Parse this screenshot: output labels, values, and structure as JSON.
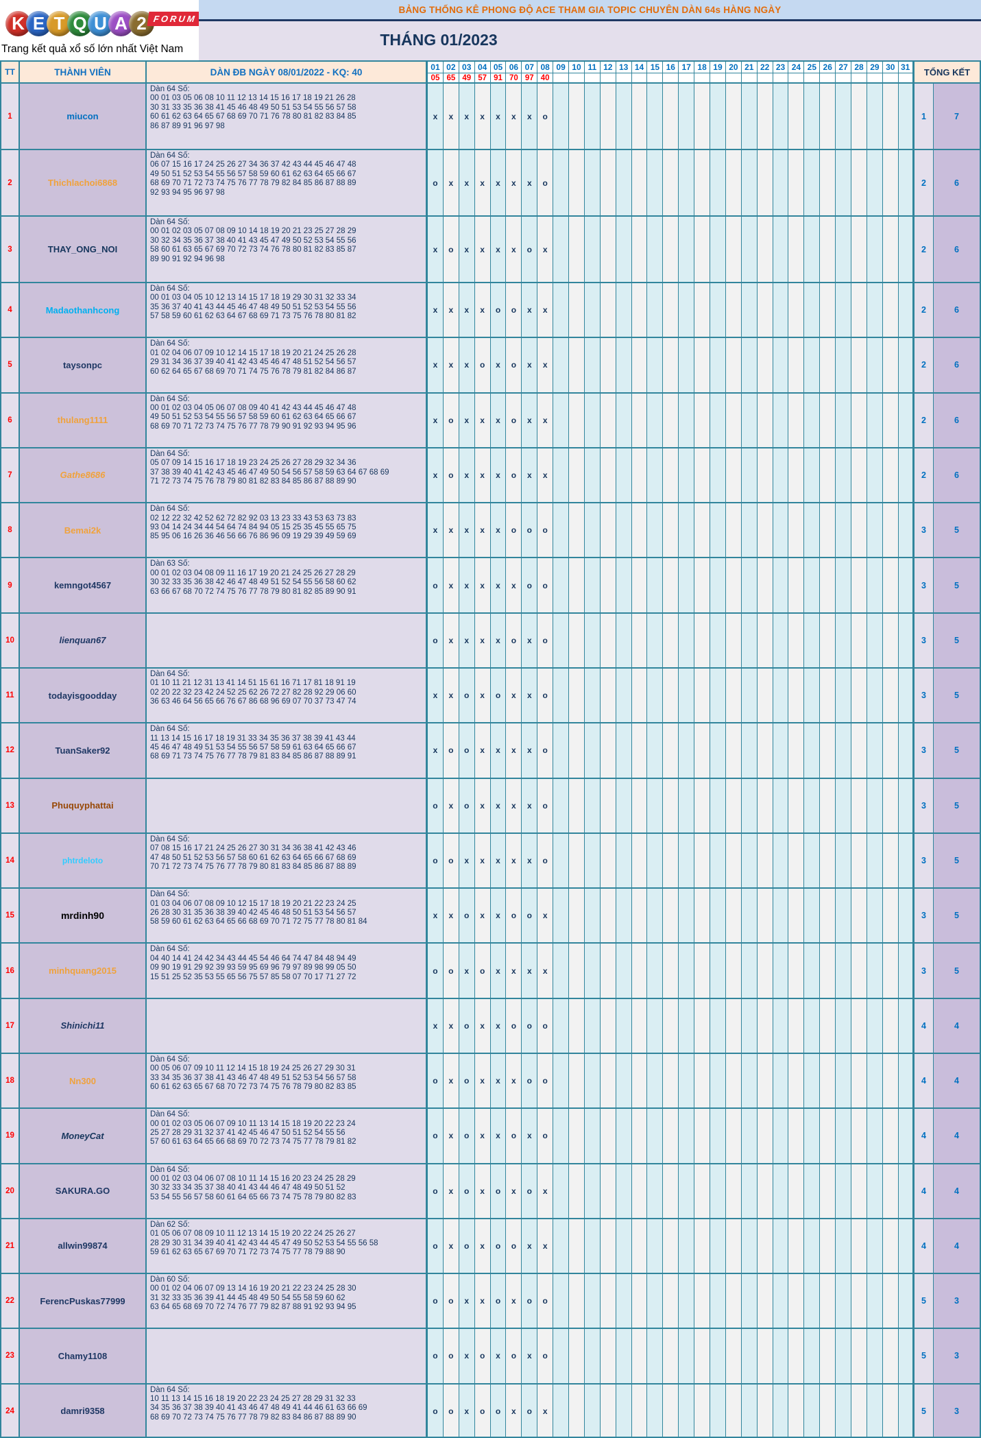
{
  "logo": {
    "letters": [
      {
        "ch": "K",
        "bg": "#D03028"
      },
      {
        "ch": "E",
        "bg": "#2B66C4"
      },
      {
        "ch": "T",
        "bg": "#D89A28"
      },
      {
        "ch": "Q",
        "bg": "#2E8B3C"
      },
      {
        "ch": "U",
        "bg": "#3D8FD6"
      },
      {
        "ch": "A",
        "bg": "#9C4FC4"
      },
      {
        "ch": "2",
        "bg": "#8A6D2F"
      }
    ],
    "forum": "FORUM",
    "tagline": "Trang kết quả xổ số lớn nhất Việt Nam"
  },
  "banner": {
    "title": "BẢNG THỐNG KÊ PHONG ĐỘ ACE THAM GIA TOPIC CHUYÊN DÀN 64s HÀNG NGÀY",
    "month": "THÁNG 01/2023"
  },
  "table": {
    "headers": {
      "tt": "TT",
      "member": "THÀNH VIÊN",
      "dan": "DÀN ĐB NGÀY 08/01/2022 - KQ: 40",
      "total": "TỔNG KẾT"
    },
    "days": [
      "01",
      "02",
      "03",
      "04",
      "05",
      "06",
      "07",
      "08",
      "09",
      "10",
      "11",
      "12",
      "13",
      "14",
      "15",
      "16",
      "17",
      "18",
      "19",
      "20",
      "21",
      "22",
      "23",
      "24",
      "25",
      "26",
      "27",
      "28",
      "29",
      "30",
      "31"
    ],
    "kq": [
      "05",
      "65",
      "49",
      "57",
      "91",
      "70",
      "97",
      "40"
    ],
    "rows": [
      {
        "tt": "1",
        "name": "miucon",
        "color": "#0070C0",
        "italic": false,
        "size": 13,
        "dan_label": "Dàn 64 Số:",
        "dan_lines": [
          "00 01 03 05 06 08 10 11 12 13 14 15 16 17 18 19 21 26 28",
          "30 31 33 35 36 38 41 45 46 48 49 50 51 53 54 55 56 57 58",
          "60 61 62 63 64 65 67 68 69 70 71 76 78 80 81 82 83 84 85",
          "86 87 89 91 96 97 98"
        ],
        "marks": "xxxxxxxo",
        "miss": "1",
        "hit": "7"
      },
      {
        "tt": "2",
        "name": "Thichlachoi6868",
        "color": "#F0A23C",
        "italic": false,
        "size": 13,
        "dan_label": "Dàn 64 Số:",
        "dan_lines": [
          "06 07 15 16 17 24 25 26 27 34 36 37 42 43 44 45 46 47 48",
          "49 50 51 52 53 54 55 56 57 58 59 60 61 62 63 64 65 66 67",
          "68 69 70 71 72 73 74 75 76 77 78 79 82 84 85 86 87 88 89",
          "92 93 94 95 96 97 98"
        ],
        "marks": "oxxxxxxo",
        "miss": "2",
        "hit": "6"
      },
      {
        "tt": "3",
        "name": "THAY_ONG_NOI",
        "color": "#17365D",
        "italic": false,
        "size": 13,
        "dan_label": "Dàn 64 Số:",
        "dan_lines": [
          "00 01 02 03 05 07 08 09 10 14 18 19 20 21 23 25 27 28 29",
          "30 32 34 35 36 37 38 40 41 43 45 47 49 50 52 53 54 55 56",
          "58 60 61 63 65 67 69 70 72 73 74 76 78 80 81 82 83 85 87",
          "89 90 91 92 94 96 98"
        ],
        "marks": "xoxxxxox",
        "miss": "2",
        "hit": "6"
      },
      {
        "tt": "4",
        "name": "Madaothanhcong",
        "color": "#00B0F0",
        "italic": false,
        "size": 13,
        "dan_label": "Dàn 64 Số:",
        "dan_lines": [
          "00 01 03 04 05 10 12 13 14 15 17 18 19 29 30 31 32 33 34",
          "35 36 37 40 41 43 44 45 46 47 48 49 50 51 52 53 54 55 56",
          "57 58 59 60 61 62 63 64 67 68 69 71 73 75 76 78 80 81 82"
        ],
        "marks": "xxxxooxx",
        "miss": "2",
        "hit": "6"
      },
      {
        "tt": "5",
        "name": "taysonpc",
        "color": "#1F3864",
        "italic": false,
        "size": 13,
        "dan_label": "Dàn 64 Số:",
        "dan_lines": [
          "01 02 04 06 07 09 10 12 14 15 17 18 19 20 21 24 25 26 28",
          "29 31 34 36 37 39 40 41 42 43 45 46 47 48 51 52 54 56 57",
          "60 62 64 65 67 68 69 70 71 74 75 76 78 79 81 82 84 86 87"
        ],
        "marks": "xxxoxoxx",
        "miss": "2",
        "hit": "6"
      },
      {
        "tt": "6",
        "name": "thulang1111",
        "color": "#F0A23C",
        "italic": false,
        "size": 13,
        "dan_label": "Dàn 64 Số:",
        "dan_lines": [
          "00 01 02 03 04 05 06 07 08 09 40 41 42 43 44 45 46 47 48",
          "49 50 51 52 53 54 55 56 57 58 59 60 61 62 63 64 65 66 67",
          "68 69 70 71 72 73 74 75 76 77 78 79 90 91 92 93 94 95 96"
        ],
        "marks": "xoxxxoxx",
        "miss": "2",
        "hit": "6"
      },
      {
        "tt": "7",
        "name": "Gathe8686",
        "color": "#F0A23C",
        "italic": true,
        "size": 13,
        "dan_label": "Dàn 64 Số:",
        "dan_lines": [
          "05 07 09 14 15 16 17 18 19 23 24 25 26 27 28 29 32 34 36",
          "37 38 39 40 41 42 43 45 46 47 49 50 54 56 57 58 59 63 64 67 68 69",
          "71 72 73 74 75 76 78 79 80 81 82 83 84 85 86 87 88 89 90"
        ],
        "marks": "xoxxxoxx",
        "miss": "2",
        "hit": "6"
      },
      {
        "tt": "8",
        "name": "Bemai2k",
        "color": "#F0A23C",
        "italic": false,
        "size": 13,
        "dan_label": "Dàn 64 Số:",
        "dan_lines": [
          "02 12 22 32 42 52 62 72 82 92 03 13 23 33 43 53 63 73 83",
          "93 04 14 24 34 44 54 64 74 84 94 05 15 25 35 45 55 65 75",
          "85 95 06 16 26 36 46 56 66 76 86 96 09 19 29 39 49 59 69"
        ],
        "marks": "xxxxxooo",
        "miss": "3",
        "hit": "5"
      },
      {
        "tt": "9",
        "name": "kemngot4567",
        "color": "#1F3864",
        "italic": false,
        "size": 13,
        "dan_label": "Dàn 63 Số:",
        "dan_lines": [
          "00 01 02 03 04 08 09 11 16 17 19 20 21 24 25 26 27 28 29",
          "30 32 33 35 36 38 42 46 47 48 49 51 52 54 55 56 58 60 62",
          "63 66 67 68 70 72 74 75 76 77 78 79 80 81 82 85 89 90 91"
        ],
        "marks": "oxxxxxoo",
        "miss": "3",
        "hit": "5"
      },
      {
        "tt": "10",
        "name": "lienquan67",
        "color": "#1F3864",
        "italic": true,
        "size": 13,
        "dan_label": "",
        "dan_lines": [],
        "marks": "oxxxxoxo",
        "miss": "3",
        "hit": "5"
      },
      {
        "tt": "11",
        "name": "todayisgoodday",
        "color": "#1F3864",
        "italic": false,
        "size": 13,
        "dan_label": "Dàn 64 Số:",
        "dan_lines": [
          "01 10 11 21 12 31 13 41 14 51 15 61 16 71 17 81 18 91 19",
          "02 20 22 32 23 42 24 52 25 62 26 72 27 82 28 92 29 06 60",
          "36 63 46 64 56 65 66 76 67 86 68 96 69 07 70 37 73 47 74"
        ],
        "marks": "xxoxoxxo",
        "miss": "3",
        "hit": "5"
      },
      {
        "tt": "12",
        "name": "TuanSaker92",
        "color": "#1F3864",
        "italic": false,
        "size": 13,
        "dan_label": "Dàn 64 Số:",
        "dan_lines": [
          "11 13 14 15 16 17 18 19 31 33 34 35 36 37 38 39 41 43 44",
          "45 46 47 48 49 51 53 54 55 56 57 58 59 61 63 64 65 66 67",
          "68 69 71 73 74 75 76 77 78 79 81 83 84 85 86 87 88 89 91"
        ],
        "marks": "xooxxxxo",
        "miss": "3",
        "hit": "5"
      },
      {
        "tt": "13",
        "name": "Phuquyphattai",
        "color": "#974806",
        "italic": false,
        "size": 13,
        "dan_label": "",
        "dan_lines": [],
        "marks": "oxoxxxxo",
        "miss": "3",
        "hit": "5"
      },
      {
        "tt": "14",
        "name": "phtrdeloto",
        "color": "#33CCFF",
        "italic": false,
        "size": 12,
        "dan_label": "Dàn 64 Số:",
        "dan_lines": [
          "07 08 15 16 17 21 24 25 26 27 30 31 34 36 38 41 42 43 46",
          "47 48 50 51 52 53 56 57 58 60 61 62 63 64 65 66 67 68 69",
          "70 71 72 73 74 75 76 77 78 79 80 81 83 84 85 86 87 88 89"
        ],
        "marks": "ooxxxxxo",
        "miss": "3",
        "hit": "5"
      },
      {
        "tt": "15",
        "name": "mrdinh90",
        "color": "#000000",
        "italic": false,
        "size": 14,
        "dan_label": "Dàn 64 Số:",
        "dan_lines": [
          "01 03 04 06 07 08 09 10 12 15 17 18 19 20 21 22 23 24 25",
          "26 28 30 31 35 36 38 39 40 42 45 46 48 50 51 53 54 56 57",
          "58 59 60 61 62 63 64 65 66 68 69 70 71 72 75 77 78 80 81 84"
        ],
        "marks": "xxoxxoox",
        "miss": "3",
        "hit": "5"
      },
      {
        "tt": "16",
        "name": "minhquang2015",
        "color": "#F0A23C",
        "italic": false,
        "size": 13,
        "dan_label": "Dàn 64 Số:",
        "dan_lines": [
          "04 40 14 41 24 42 34 43 44 45 54 46 64 74 47 84 48 94 49",
          "09 90 19 91 29 92 39 93 59 95 69 96 79 97 89 98 99 05 50",
          "15 51 25 52 35 53 55 65 56 75 57 85 58 07 70 17 71 27 72"
        ],
        "marks": "ooxoxxxx",
        "miss": "3",
        "hit": "5"
      },
      {
        "tt": "17",
        "name": "Shinichi11",
        "color": "#1F3864",
        "italic": true,
        "size": 13,
        "dan_label": "",
        "dan_lines": [],
        "marks": "xxoxxooo",
        "miss": "4",
        "hit": "4"
      },
      {
        "tt": "18",
        "name": "Nn300",
        "color": "#F0A23C",
        "italic": false,
        "size": 13,
        "dan_label": "Dàn 64 Số:",
        "dan_lines": [
          "00 05 06 07 09 10 11 12 14 15 18 19 24 25 26 27 29 30 31",
          "33 34 35 36 37 38 41 43 46 47 48 49 51 52 53 54 56 57 58",
          "60 61 62 63 65 67 68 70 72 73 74 75 76 78 79 80 82 83 85"
        ],
        "marks": "oxoxxxoo",
        "miss": "4",
        "hit": "4"
      },
      {
        "tt": "19",
        "name": "MoneyCat",
        "color": "#17365D",
        "italic": true,
        "size": 13,
        "dan_label": "Dàn 64 Số:",
        "dan_lines": [
          "00 01 02 03 05 06 07 09 10 11 13 14 15 18 19 20 22 23 24",
          "25 27 28 29 31 32 37 41 42 45 46 47 50 51 52 54 55 56",
          "57 60 61 63 64 65 66 68 69 70 72 73 74 75 77 78 79 81 82"
        ],
        "marks": "oxoxxoxo",
        "miss": "4",
        "hit": "4"
      },
      {
        "tt": "20",
        "name": "SAKURA.GO",
        "color": "#1F3864",
        "italic": false,
        "size": 13,
        "dan_label": "Dàn 64 Số:",
        "dan_lines": [
          "00 01 02 03 04 06 07 08 10 11 14 15 16 20 23 24 25 28 29",
          "30 32 33 34 35 37 38 40 41 43 44 46 47 48 49 50 51 52",
          "53 54 55 56 57 58 60 61 64 65 66 73 74 75 78 79 80 82 83"
        ],
        "marks": "oxoxoxox",
        "miss": "4",
        "hit": "4"
      },
      {
        "tt": "21",
        "name": "allwin99874",
        "color": "#1F3864",
        "italic": false,
        "size": 13,
        "dan_label": "Dàn 62 Số:",
        "dan_lines": [
          "01 05 06 07 08 09 10 11 12 13 14 15 19 20 22 24 25 26 27",
          "28 29 30 31 34 39 40 41 42 43 44 45 47 49 50 52 53 54 55 56 58",
          "59 61 62 63 65 67 69 70 71 72 73 74 75 77 78 79 88 90"
        ],
        "marks": "oxoxooxx",
        "miss": "4",
        "hit": "4"
      },
      {
        "tt": "22",
        "name": "FerencPuskas77999",
        "color": "#1F3864",
        "italic": false,
        "size": 13,
        "dan_label": "Dàn 60 Số:",
        "dan_lines": [
          "00 01 02 04 06 07 09 13 14 16 19 20 21 22 23 24 25 28 30",
          "31 32 33 35 36 39 41 44 45 48 49 50 54 55 58 59 60 62",
          "63 64 65 68 69 70 72 74 76 77 79 82 87 88 91 92 93 94 95"
        ],
        "marks": "ooxxoxoo",
        "miss": "5",
        "hit": "3"
      },
      {
        "tt": "23",
        "name": "Chamy1108",
        "color": "#1F3864",
        "italic": false,
        "size": 13,
        "dan_label": "",
        "dan_lines": [],
        "marks": "ooxoxoxo",
        "miss": "5",
        "hit": "3"
      },
      {
        "tt": "24",
        "name": "damri9358",
        "color": "#1F3864",
        "italic": false,
        "size": 13,
        "dan_label": "Dàn 64 Số:",
        "dan_lines": [
          "10 11 13 14 15 16 18 19 20 22 23 24 25 27 28 29 31 32 33",
          "34 35 36 37 38 39 40 41 43 46 47 48 49 41 44 46 61 63 66 69",
          "68 69 70 72 73 74 75 76 77 78 79 82 83 84 86 87 88 89 90"
        ],
        "marks": "ooxooxox",
        "miss": "5",
        "hit": "3"
      }
    ]
  },
  "colors": {
    "border_teal": "#31859C",
    "header_peach": "#FDE9D9",
    "banner_blue": "#C5D9F1",
    "banner_text_orange": "#E36C0A",
    "month_lavender": "#E4DFEC",
    "navy": "#17365D",
    "member_cell": "#CCC1DA",
    "dan_cell": "#E0DBEA",
    "day_odd": "#DAEEF3",
    "day_even": "#F2F2F2",
    "kq_red": "#FF0000",
    "total_blue": "#0070C0",
    "total_right_bg": "#C9BDDB"
  }
}
